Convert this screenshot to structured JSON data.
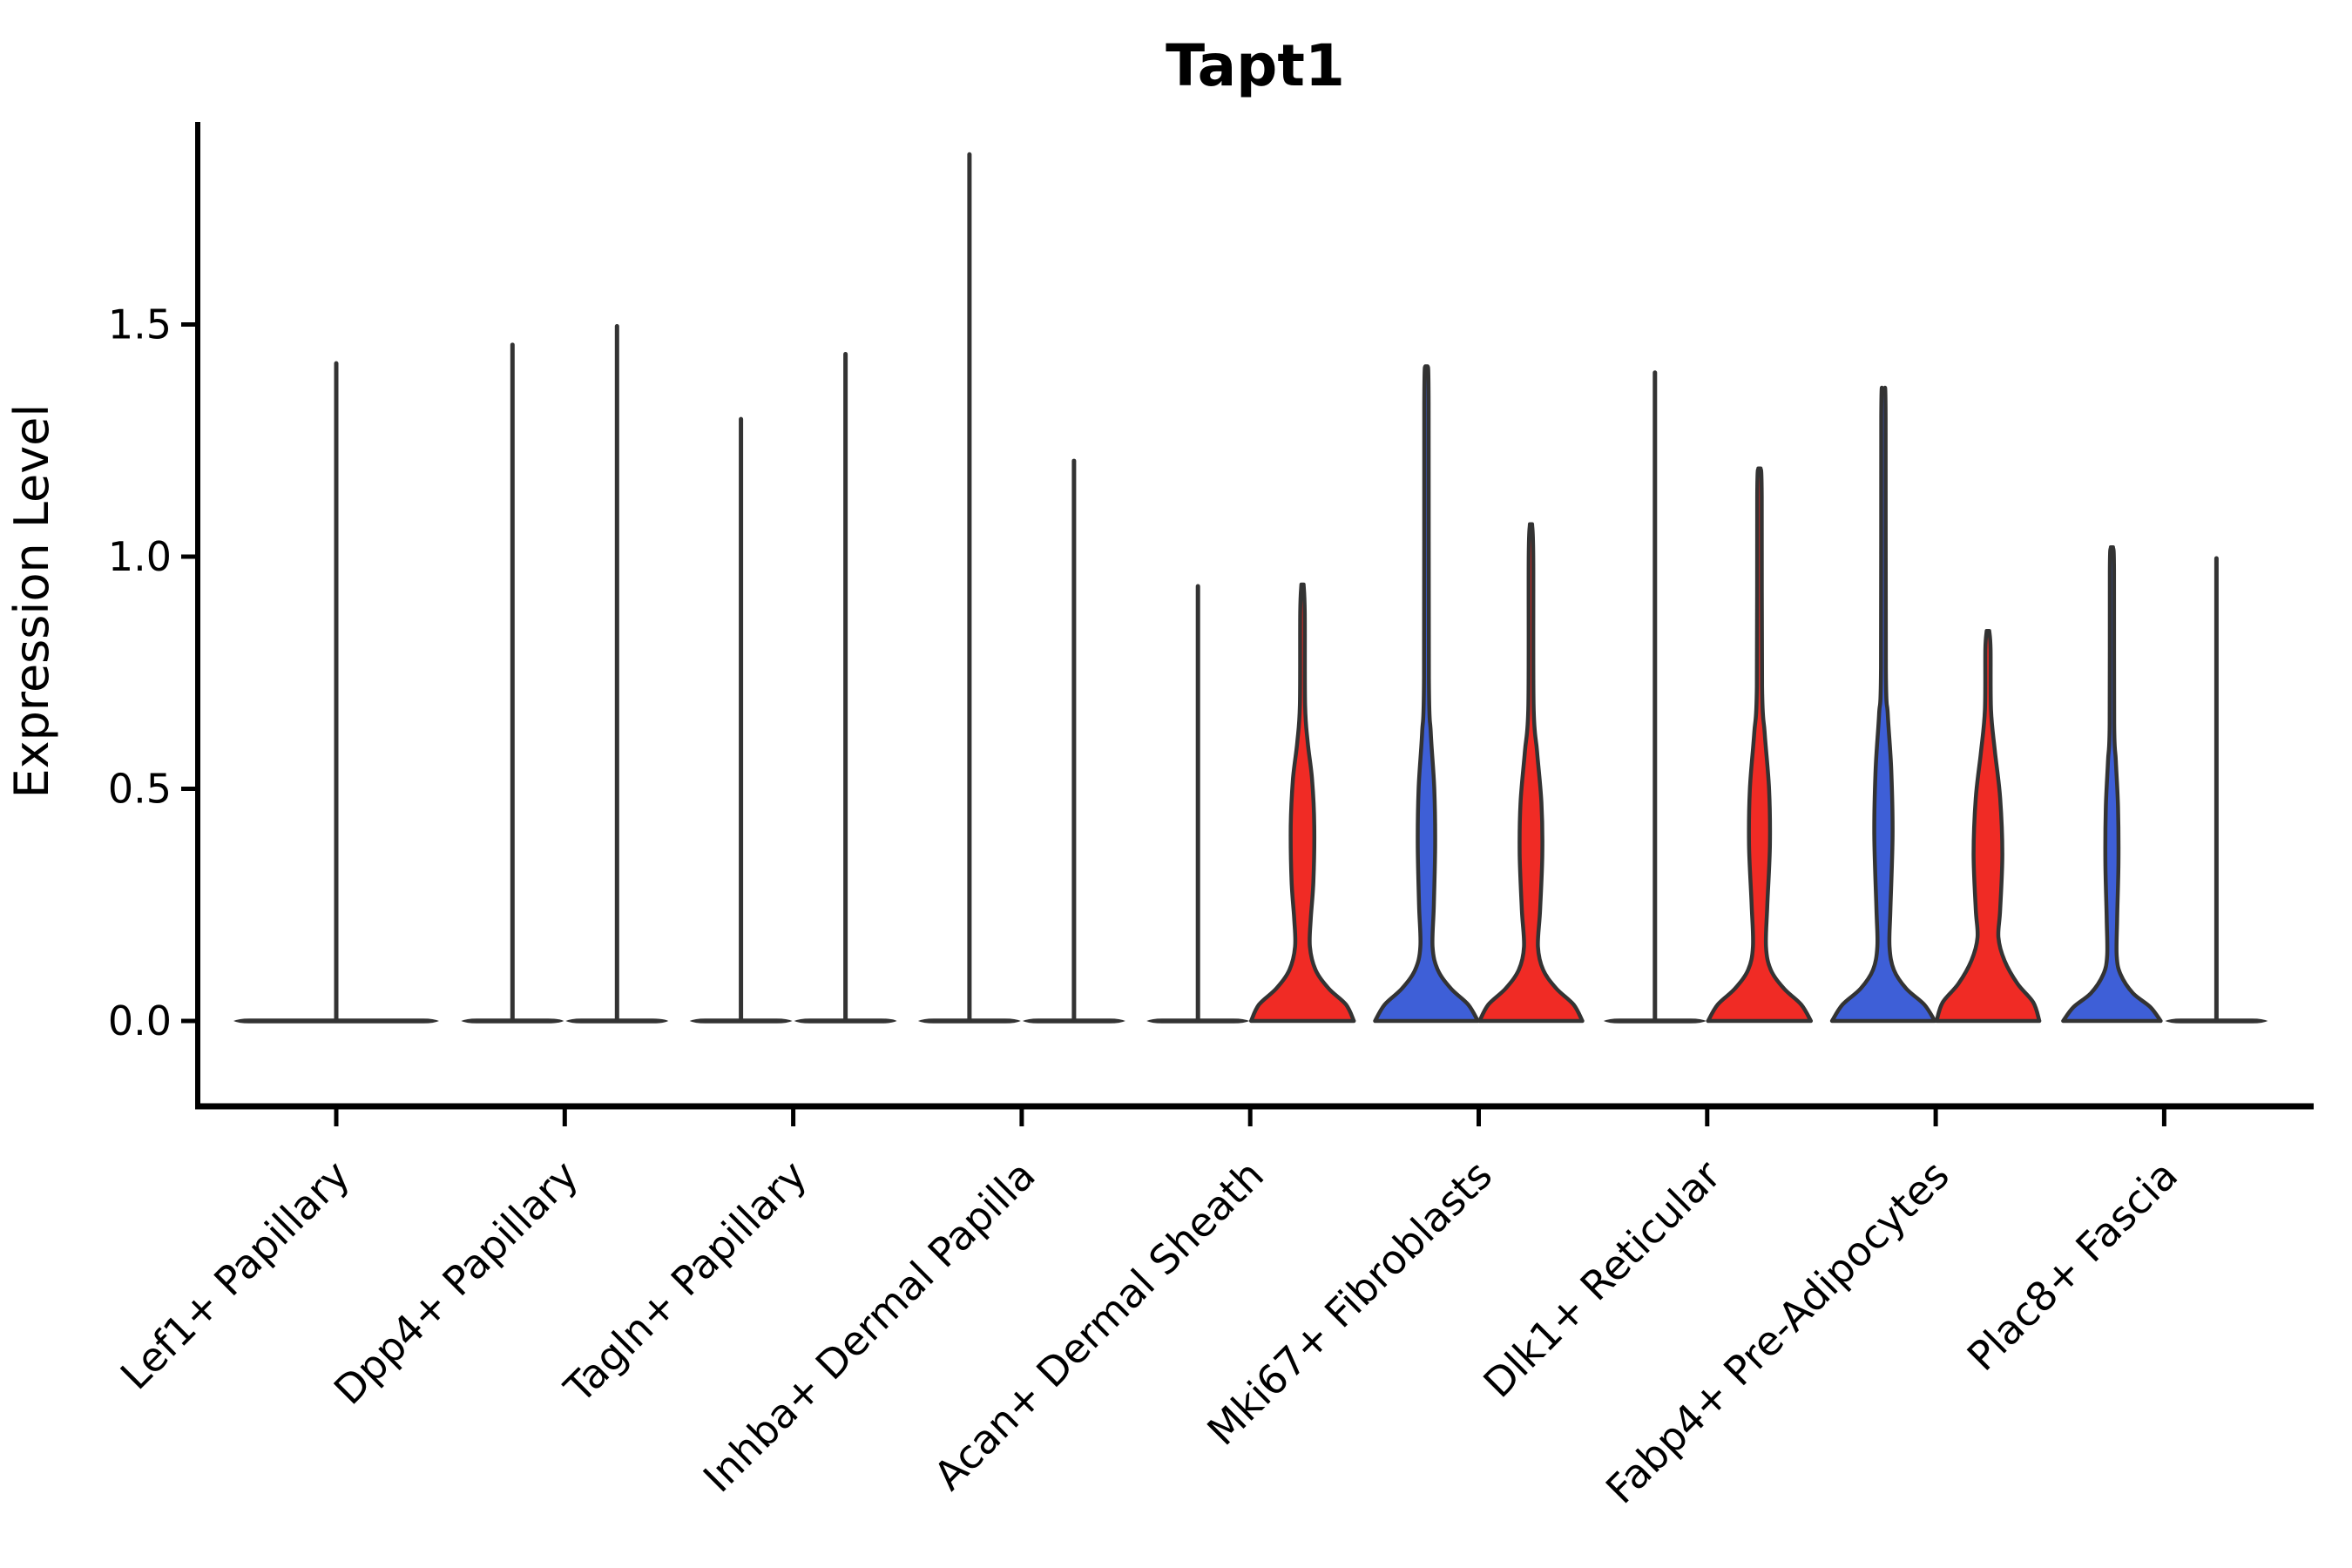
{
  "page": {
    "background": "#ffffff"
  },
  "chart_data": {
    "type": "violin",
    "title": "Tapt1",
    "ylabel": "Expression Level",
    "xlabel": "",
    "legend": "none",
    "grid": false,
    "ylim": [
      -0.07,
      1.95
    ],
    "ytick_labels": [
      "0.0",
      "0.5",
      "1.0",
      "1.5"
    ],
    "ytick_values": [
      0.0,
      0.5,
      1.0,
      1.5
    ],
    "colors": {
      "red_fill": "#F02B25",
      "blue_fill": "#3E5FD7",
      "outline": "#333333",
      "axis": "#000000",
      "text": "#000000"
    },
    "categories": [
      "Lef1+ Papillary",
      "Dpp4+ Papillary",
      "Tagln+ Papillary",
      "Inhba+ Dermal Papilla",
      "Acan+ Dermal Sheath",
      "Mki67+ Fibroblasts",
      "Dlk1+ Reticular",
      "Fabp4+ Pre-Adipocytes",
      "Plac8+ Fascia"
    ],
    "violins": [
      {
        "cat": 0,
        "category": "Lef1+ Papillary",
        "side": "full",
        "style": "spike",
        "fill": "none",
        "max": 1.42
      },
      {
        "cat": 1,
        "category": "Dpp4+ Papillary",
        "side": "left",
        "style": "spike",
        "fill": "none",
        "max": 1.46
      },
      {
        "cat": 1,
        "category": "Dpp4+ Papillary",
        "side": "right",
        "style": "spike",
        "fill": "none",
        "max": 1.5
      },
      {
        "cat": 2,
        "category": "Tagln+ Papillary",
        "side": "left",
        "style": "spike",
        "fill": "none",
        "max": 1.3
      },
      {
        "cat": 2,
        "category": "Tagln+ Papillary",
        "side": "right",
        "style": "spike",
        "fill": "none",
        "max": 1.44
      },
      {
        "cat": 3,
        "category": "Inhba+ Dermal Papilla",
        "side": "left",
        "style": "spike",
        "fill": "none",
        "max": 1.87
      },
      {
        "cat": 3,
        "category": "Inhba+ Dermal Papilla",
        "side": "right",
        "style": "spike",
        "fill": "none",
        "max": 1.21
      },
      {
        "cat": 4,
        "category": "Acan+ Dermal Sheath",
        "side": "left",
        "style": "spike",
        "fill": "none",
        "max": 0.94
      },
      {
        "cat": 4,
        "category": "Acan+ Dermal Sheath",
        "side": "right",
        "style": "filled",
        "fill": "red",
        "max": 0.94,
        "profile": [
          [
            0,
            59
          ],
          [
            0.035,
            50
          ],
          [
            0.07,
            30
          ],
          [
            0.11,
            15
          ],
          [
            0.16,
            8.5
          ],
          [
            0.22,
            9.5
          ],
          [
            0.3,
            12.5
          ],
          [
            0.42,
            13.5
          ],
          [
            0.52,
            11
          ],
          [
            0.6,
            6
          ],
          [
            0.68,
            3
          ],
          [
            0.88,
            2.6
          ],
          [
            0.94,
            1.3
          ]
        ]
      },
      {
        "cat": 5,
        "category": "Mki67+ Fibroblasts",
        "side": "left",
        "style": "filled",
        "fill": "blue",
        "max": 1.41,
        "profile": [
          [
            0,
            59
          ],
          [
            0.035,
            48
          ],
          [
            0.07,
            28
          ],
          [
            0.11,
            13
          ],
          [
            0.16,
            7
          ],
          [
            0.25,
            8.5
          ],
          [
            0.38,
            10
          ],
          [
            0.5,
            9
          ],
          [
            0.62,
            5
          ],
          [
            0.74,
            2.8
          ],
          [
            1.33,
            2.5
          ],
          [
            1.41,
            1.3
          ]
        ]
      },
      {
        "cat": 5,
        "category": "Mki67+ Fibroblasts",
        "side": "right",
        "style": "filled",
        "fill": "red",
        "max": 1.07,
        "profile": [
          [
            0,
            59
          ],
          [
            0.035,
            49
          ],
          [
            0.07,
            29
          ],
          [
            0.11,
            14
          ],
          [
            0.16,
            8
          ],
          [
            0.24,
            10.5
          ],
          [
            0.36,
            13
          ],
          [
            0.47,
            12
          ],
          [
            0.58,
            7
          ],
          [
            0.68,
            3
          ],
          [
            1.0,
            2.6
          ],
          [
            1.07,
            1.3
          ]
        ]
      },
      {
        "cat": 6,
        "category": "Dlk1+ Reticular",
        "side": "left",
        "style": "spike",
        "fill": "none",
        "max": 1.4
      },
      {
        "cat": 6,
        "category": "Dlk1+ Reticular",
        "side": "right",
        "style": "filled",
        "fill": "red",
        "max": 1.19,
        "profile": [
          [
            0,
            59
          ],
          [
            0.035,
            48
          ],
          [
            0.07,
            28
          ],
          [
            0.11,
            13
          ],
          [
            0.16,
            7.5
          ],
          [
            0.25,
            9
          ],
          [
            0.38,
            12
          ],
          [
            0.5,
            11
          ],
          [
            0.62,
            6
          ],
          [
            0.72,
            3
          ],
          [
            1.13,
            2.6
          ],
          [
            1.19,
            1.3
          ]
        ]
      },
      {
        "cat": 7,
        "category": "Fabp4+ Pre-Adipocytes",
        "side": "left",
        "style": "filled",
        "fill": "blue",
        "max": 1.36,
        "profile": [
          [
            0,
            59
          ],
          [
            0.035,
            47
          ],
          [
            0.07,
            26
          ],
          [
            0.11,
            12
          ],
          [
            0.16,
            7
          ],
          [
            0.24,
            8
          ],
          [
            0.4,
            10.5
          ],
          [
            0.54,
            9
          ],
          [
            0.66,
            5
          ],
          [
            0.76,
            2.8
          ],
          [
            1.3,
            2.5
          ],
          [
            1.36,
            1.3
          ]
        ]
      },
      {
        "cat": 7,
        "category": "Fabp4+ Pre-Adipocytes",
        "side": "right",
        "style": "filled",
        "fill": "red",
        "max": 0.84,
        "profile": [
          [
            0,
            59
          ],
          [
            0.04,
            52
          ],
          [
            0.08,
            34
          ],
          [
            0.13,
            19
          ],
          [
            0.18,
            12
          ],
          [
            0.24,
            14
          ],
          [
            0.36,
            16.5
          ],
          [
            0.48,
            14
          ],
          [
            0.58,
            8
          ],
          [
            0.67,
            3.5
          ],
          [
            0.8,
            3
          ],
          [
            0.84,
            1.5
          ]
        ]
      },
      {
        "cat": 8,
        "category": "Plac8+ Fascia",
        "side": "left",
        "style": "filled",
        "fill": "blue",
        "max": 1.02,
        "profile": [
          [
            0,
            56
          ],
          [
            0.03,
            44
          ],
          [
            0.06,
            24
          ],
          [
            0.1,
            10
          ],
          [
            0.14,
            5.5
          ],
          [
            0.22,
            6
          ],
          [
            0.34,
            7.5
          ],
          [
            0.46,
            7
          ],
          [
            0.56,
            4.5
          ],
          [
            0.64,
            2.6
          ],
          [
            0.97,
            2.4
          ],
          [
            1.02,
            1.3
          ]
        ]
      },
      {
        "cat": 8,
        "category": "Plac8+ Fascia",
        "side": "right",
        "style": "spike",
        "fill": "none",
        "max": 1.0
      }
    ]
  }
}
